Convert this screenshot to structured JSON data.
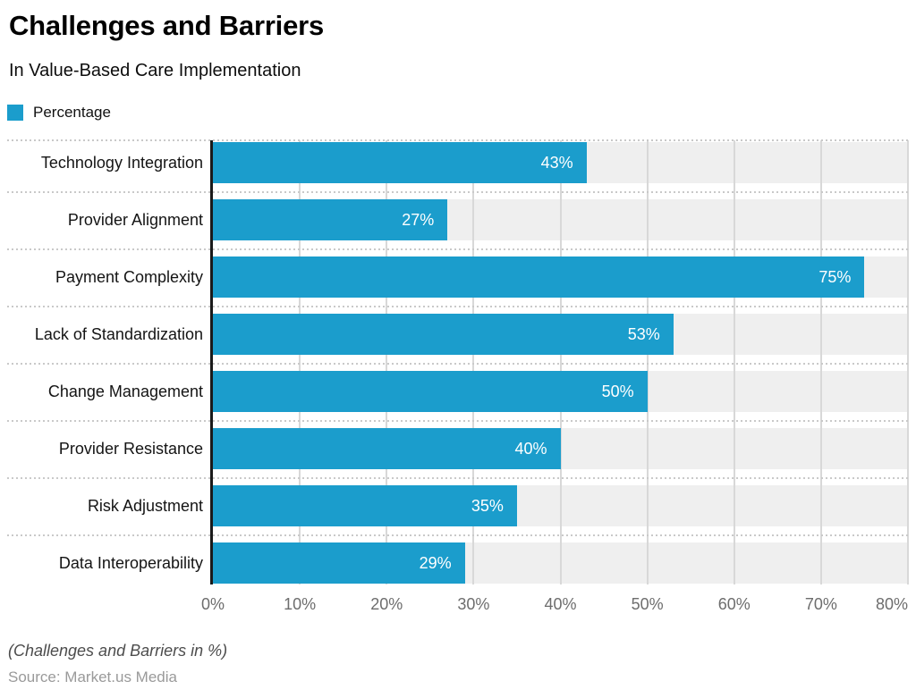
{
  "header": {
    "title": "Challenges and Barriers",
    "subtitle": "In Value-Based Care Implementation"
  },
  "legend": {
    "label": "Percentage",
    "color": "#1b9dcc"
  },
  "chart_data": {
    "type": "bar",
    "orientation": "horizontal",
    "title": "Challenges and Barriers",
    "subtitle": "In Value-Based Care Implementation",
    "series_name": "Percentage",
    "categories": [
      "Technology Integration",
      "Provider Alignment",
      "Payment Complexity",
      "Lack of Standardization",
      "Change Management",
      "Provider Resistance",
      "Risk Adjustment",
      "Data Interoperability"
    ],
    "values": [
      43,
      27,
      75,
      53,
      50,
      40,
      35,
      29
    ],
    "value_suffix": "%",
    "xlim": [
      0,
      80
    ],
    "x_ticks": [
      "0%",
      "10%",
      "20%",
      "30%",
      "40%",
      "50%",
      "60%",
      "70%",
      "80%"
    ],
    "grid": true,
    "legend_position": "top-left",
    "bar_color": "#1b9dcc",
    "track_color": "#efefef"
  },
  "footer": {
    "note": "(Challenges and Barriers in %)",
    "source": "Source: Market.us Media"
  }
}
